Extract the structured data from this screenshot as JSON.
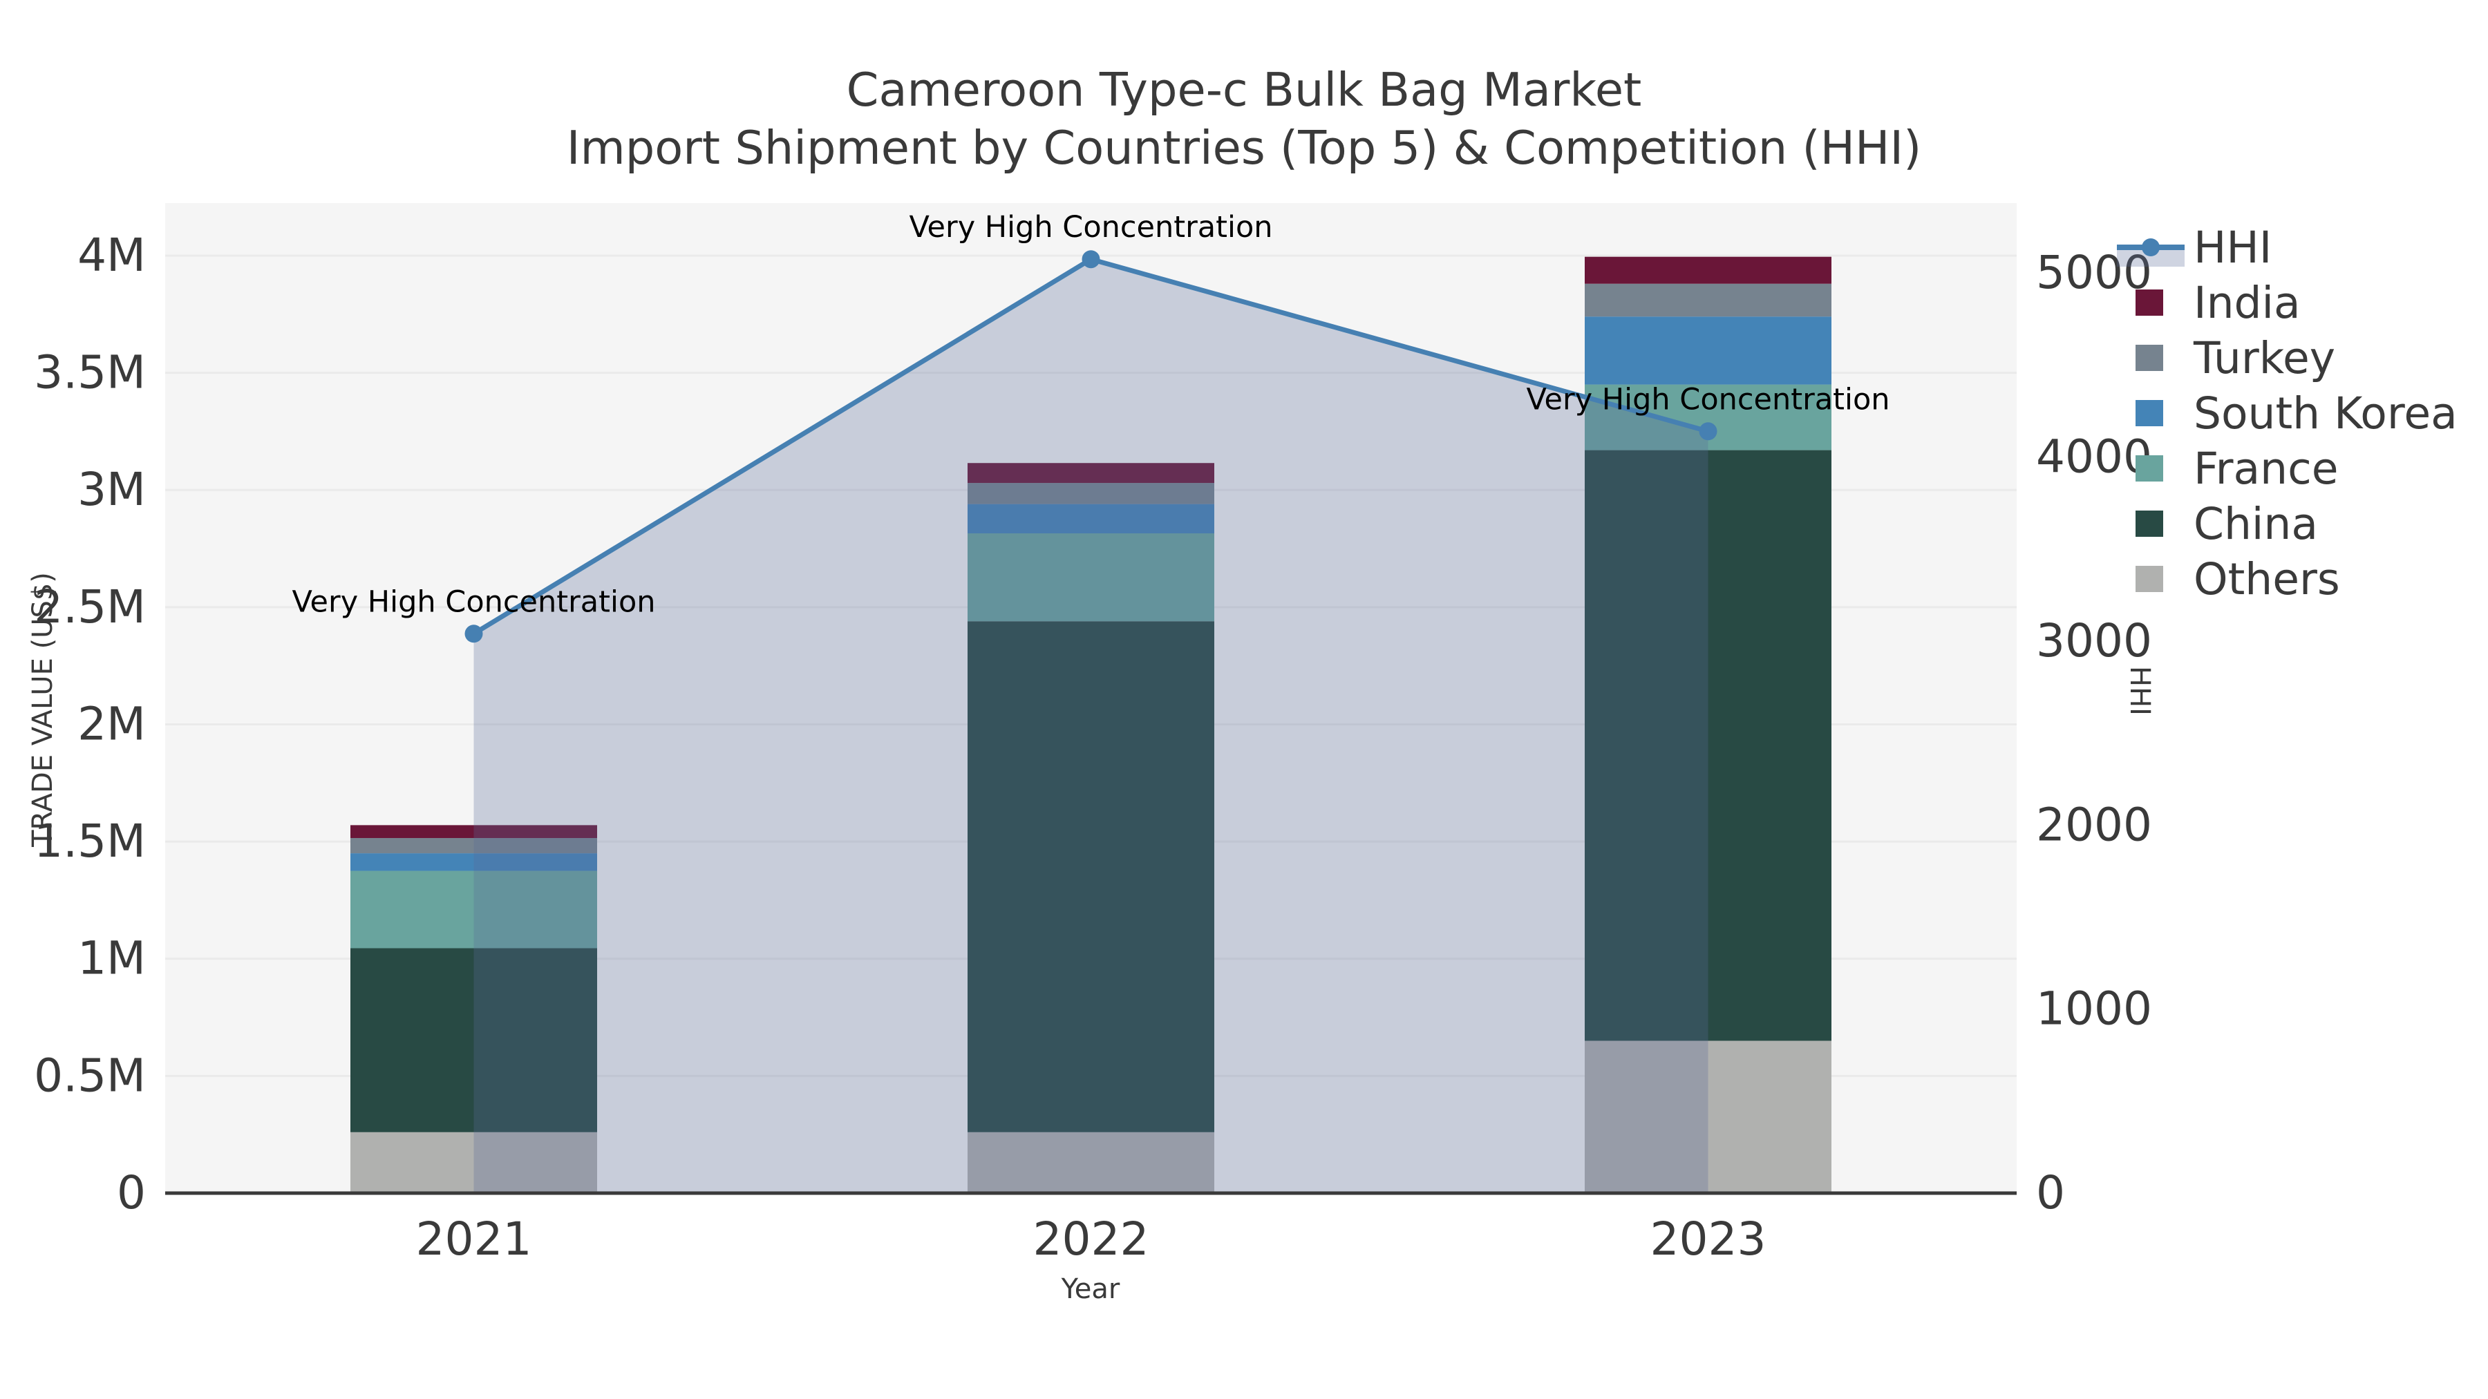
{
  "figure": {
    "title_line1": "Cameroon Type-c Bulk Bag Market",
    "title_line2": "Import Shipment by Countries (Top 5) & Competition (HHI)",
    "background_color": "#ffffff",
    "plot_background_color": "#f5f5f5",
    "gridline_color": "#eaeaea",
    "axis_line_color": "#3a3a3a",
    "text_color": "#3a3a3a",
    "annotation_text_color": "#000000"
  },
  "chart_data": {
    "type": "bar",
    "subtype": "stacked-bar-with-line-overlay-dual-axis",
    "title": "Cameroon Type-c Bulk Bag Market",
    "subtitle": "Import Shipment by Countries (Top 5) & Competition (HHI)",
    "categories": [
      "2021",
      "2022",
      "2023"
    ],
    "xlabel": "Year",
    "y1_label": "TRADE VALUE (US$)",
    "y2_label": "HHI",
    "y1_ticks": [
      {
        "label": "0",
        "value": 0
      },
      {
        "label": "0.5M",
        "value": 500000
      },
      {
        "label": "1M",
        "value": 1000000
      },
      {
        "label": "1.5M",
        "value": 1500000
      },
      {
        "label": "2M",
        "value": 2000000
      },
      {
        "label": "2.5M",
        "value": 2500000
      },
      {
        "label": "3M",
        "value": 3000000
      },
      {
        "label": "3.5M",
        "value": 3500000
      },
      {
        "label": "4M",
        "value": 4000000
      }
    ],
    "y2_ticks": [
      {
        "label": "0",
        "value": 0
      },
      {
        "label": "1000",
        "value": 1000
      },
      {
        "label": "2000",
        "value": 2000
      },
      {
        "label": "3000",
        "value": 3000
      },
      {
        "label": "4000",
        "value": 4000
      },
      {
        "label": "5000",
        "value": 5000
      }
    ],
    "y1_axis_max": 4224000,
    "y2_axis_max": 5380,
    "grid": "horizontal-only",
    "series": [
      {
        "name": "Others",
        "color": "#b0b1af",
        "values": [
          260000,
          260000,
          650000
        ]
      },
      {
        "name": "China",
        "color": "#284a44",
        "values": [
          785000,
          2180000,
          2520000
        ]
      },
      {
        "name": "France",
        "color": "#69a49e",
        "values": [
          330000,
          375000,
          280000
        ]
      },
      {
        "name": "South Korea",
        "color": "#4484b7",
        "values": [
          75000,
          125000,
          290000
        ]
      },
      {
        "name": "Turkey",
        "color": "#76838f",
        "values": [
          65000,
          90000,
          140000
        ]
      },
      {
        "name": "India",
        "color": "#6a1638",
        "values": [
          55000,
          85000,
          115000
        ]
      }
    ],
    "stack_totals": [
      1570000,
      3115000,
      3995000
    ],
    "line_series": {
      "name": "HHI",
      "axis": "y2",
      "color": "#4680b2",
      "marker": "circle",
      "area_fill_color": "#5b6c96",
      "area_fill_opacity": 0.29,
      "values": [
        3040,
        5075,
        4140
      ]
    },
    "annotations": [
      {
        "text": "Very High Concentration",
        "category_index": 0
      },
      {
        "text": "Very High Concentration",
        "category_index": 1
      },
      {
        "text": "Very High Concentration",
        "category_index": 2
      }
    ],
    "legend": {
      "position": "top-right-outside",
      "items": [
        {
          "label": "HHI",
          "type": "line",
          "color": "#4680b2"
        },
        {
          "label": "India",
          "type": "box",
          "color": "#6a1638"
        },
        {
          "label": "Turkey",
          "type": "box",
          "color": "#76838f"
        },
        {
          "label": "South Korea",
          "type": "box",
          "color": "#4484b7"
        },
        {
          "label": "France",
          "type": "box",
          "color": "#69a49e"
        },
        {
          "label": "China",
          "type": "box",
          "color": "#284a44"
        },
        {
          "label": "Others",
          "type": "box",
          "color": "#b0b1af"
        }
      ]
    }
  }
}
